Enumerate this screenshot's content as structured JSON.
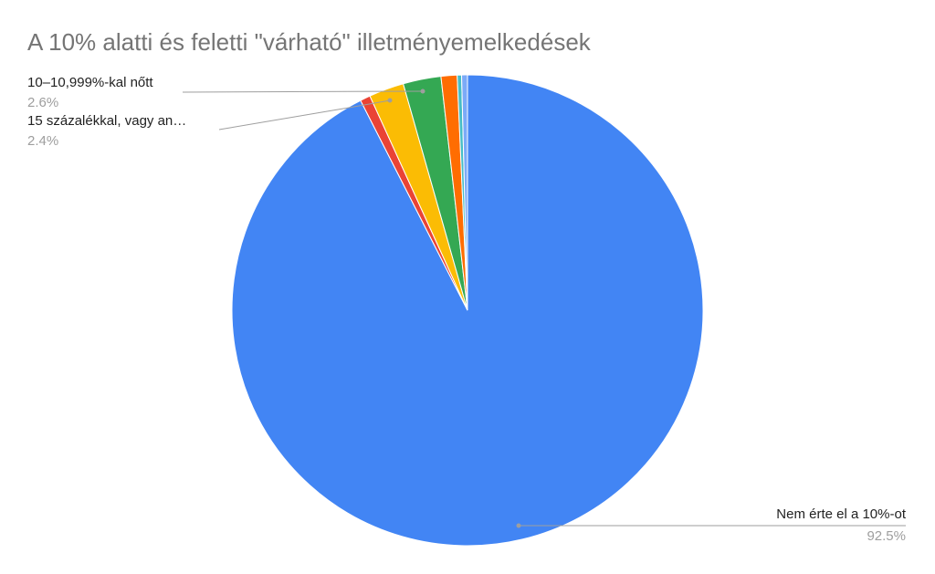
{
  "chart_data": {
    "type": "pie",
    "title": "A 10% alatti és feletti \"várható\" illetményemelkedések",
    "categories": [
      "Nem érte el a 10%-ot",
      null,
      "15 százalékkal, vagy an…",
      "10–10,999%-kal nőtt",
      null,
      null,
      null
    ],
    "values": [
      92.5,
      0.7,
      2.4,
      2.6,
      1.1,
      0.3,
      0.4
    ],
    "value_labels": [
      "92.5%",
      null,
      "2.4%",
      "2.6%",
      null,
      null,
      null
    ],
    "colors": [
      "#4285f4",
      "#ea4335",
      "#fbbc04",
      "#34a853",
      "#ff6d01",
      "#46bdc6",
      "#7baaf7"
    ]
  }
}
